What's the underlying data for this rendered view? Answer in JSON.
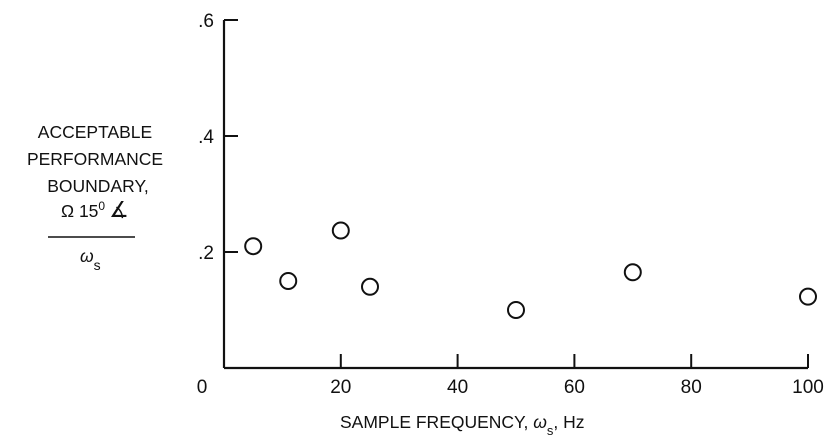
{
  "chart_data": {
    "type": "scatter",
    "title": "",
    "xlabel": {
      "text": "SAMPLE FREQUENCY, ",
      "symbol": "ω",
      "subscript": "s",
      "suffix": ", Hz"
    },
    "ylabel": {
      "lines": [
        "ACCEPTABLE",
        "PERFORMANCE",
        "BOUNDARY,"
      ],
      "numerator": "Ω 15",
      "numerator_superscript": "0",
      "numerator_mark": "∡",
      "denominator_symbol": "ω",
      "denominator_subscript": "s"
    },
    "xlim": [
      0,
      100
    ],
    "ylim": [
      0,
      0.6
    ],
    "x_ticks": [
      0,
      20,
      40,
      60,
      80,
      100
    ],
    "x_tick_labels": [
      "0",
      "20",
      "40",
      "60",
      "80",
      "100"
    ],
    "y_ticks": [
      0.2,
      0.4,
      0.6
    ],
    "y_tick_labels": [
      ".2",
      ".4",
      ".6"
    ],
    "grid": false,
    "marker": "open-circle",
    "series": [
      {
        "points": [
          {
            "x": 5,
            "y": 0.21
          },
          {
            "x": 11,
            "y": 0.15
          },
          {
            "x": 20,
            "y": 0.237
          },
          {
            "x": 25,
            "y": 0.14
          },
          {
            "x": 50,
            "y": 0.1
          },
          {
            "x": 70,
            "y": 0.165
          },
          {
            "x": 100,
            "y": 0.123
          }
        ]
      }
    ]
  }
}
